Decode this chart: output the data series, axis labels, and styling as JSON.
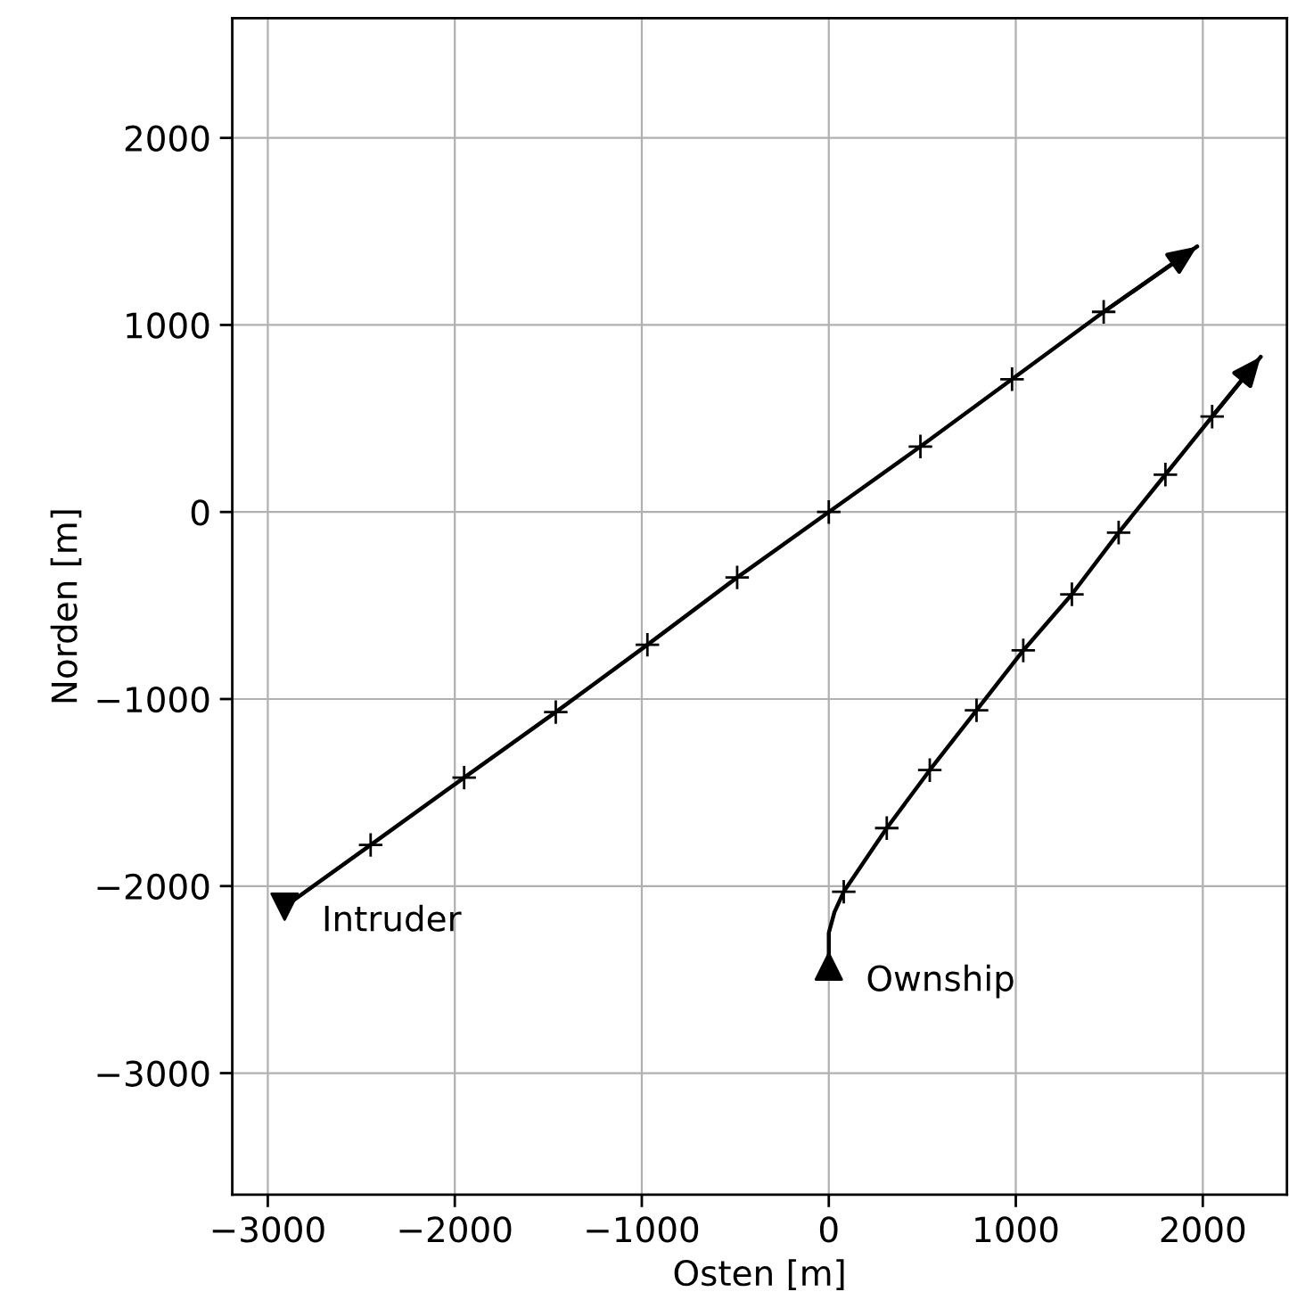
{
  "chart_data": {
    "type": "line",
    "xlabel": "Osten [m]",
    "ylabel": "Norden [m]",
    "xlim": [
      -3190,
      2450
    ],
    "ylim": [
      -3650,
      2640
    ],
    "xticks": [
      {
        "value": -3000,
        "label": "−3000"
      },
      {
        "value": -2000,
        "label": "−2000"
      },
      {
        "value": -1000,
        "label": "−1000"
      },
      0,
      1000,
      2000
    ],
    "yticks": [
      {
        "value": -3000,
        "label": "−3000"
      },
      {
        "value": -2000,
        "label": "−2000"
      },
      {
        "value": -1000,
        "label": "−1000"
      },
      0,
      1000,
      2000
    ],
    "grid": true,
    "series": [
      {
        "color": "#000000",
        "x": [
          -2910,
          -2450,
          -1950,
          -1460,
          -970,
          -490,
          0,
          490,
          980,
          1470,
          1970
        ],
        "values": [
          -2110,
          -1780,
          -1420,
          -1070,
          -710,
          -350,
          0,
          350,
          710,
          1070,
          1420
        ]
      },
      {
        "type": "scatter",
        "color": "#000000",
        "marker": "cross",
        "x": [
          -2450,
          -1950,
          -1460,
          -970,
          -490,
          0,
          490,
          980,
          1470
        ],
        "values": [
          -1780,
          -1420,
          -1070,
          -710,
          -350,
          0,
          350,
          710,
          1070
        ]
      },
      {
        "type": "scatter",
        "name": "Intruder",
        "color": "#000000",
        "marker": "triangle_down",
        "x": [
          -2910
        ],
        "values": [
          -2110
        ]
      },
      {
        "color": "#000000",
        "x": [
          0,
          0,
          30,
          80,
          310,
          540,
          790,
          1040,
          1300,
          1550,
          1800,
          2050,
          2310
        ],
        "values": [
          -2430,
          -2250,
          -2140,
          -2030,
          -1690,
          -1380,
          -1060,
          -740,
          -440,
          -110,
          200,
          510,
          830
        ]
      },
      {
        "type": "scatter",
        "color": "#000000",
        "marker": "cross",
        "x": [
          80,
          310,
          540,
          790,
          1040,
          1300,
          1550,
          1800,
          2050
        ],
        "values": [
          -2030,
          -1690,
          -1380,
          -1060,
          -740,
          -440,
          -110,
          200,
          510
        ]
      },
      {
        "type": "scatter",
        "name": "Ownship",
        "color": "#000000",
        "marker": "triangle",
        "x": [
          0
        ],
        "values": [
          -2430
        ]
      }
    ]
  }
}
